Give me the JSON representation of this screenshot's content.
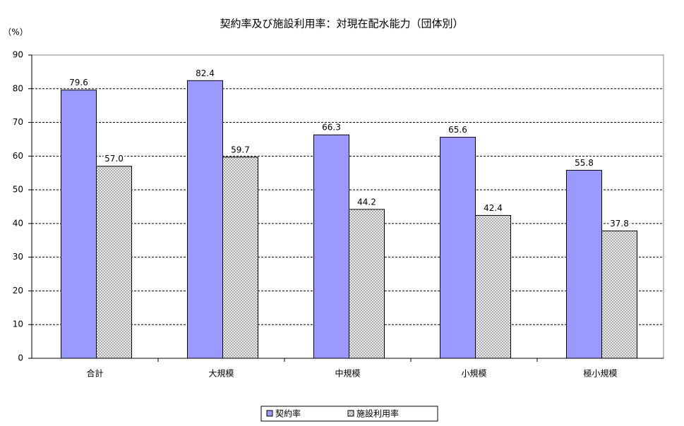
{
  "chart_data": {
    "type": "bar",
    "title": "契約率及び施設利用率：対現在配水能力（団体別）",
    "y_label": "（%）",
    "categories": [
      "合計",
      "大規模",
      "中規模",
      "小規模",
      "極小規模"
    ],
    "series": [
      {
        "name": "契約率",
        "color": "#9999ff",
        "values": [
          79.6,
          82.4,
          66.3,
          65.6,
          55.8
        ]
      },
      {
        "name": "施設利用率",
        "color": "#c0c0c0",
        "pattern": "crosshatch",
        "values": [
          57.0,
          59.7,
          44.2,
          42.4,
          37.8
        ],
        "value_labels": [
          "57.0",
          "59.7",
          "44.2",
          "42.4",
          "37.8"
        ]
      }
    ],
    "ylim": [
      0,
      90
    ],
    "yticks": [
      0,
      10,
      20,
      30,
      40,
      50,
      60,
      70,
      80,
      90
    ],
    "grid": true,
    "legend": "bottom"
  }
}
